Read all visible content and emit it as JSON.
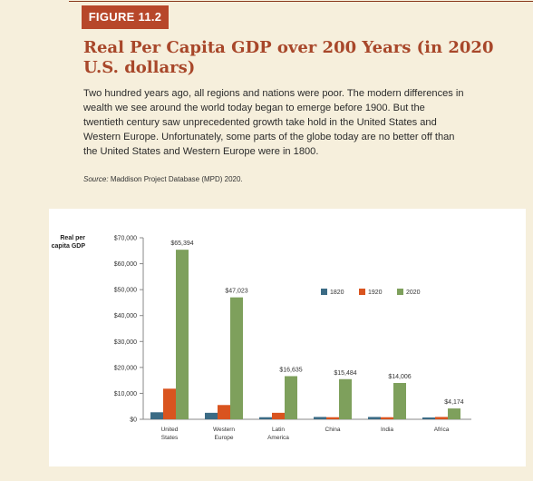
{
  "figure": {
    "label": "FIGURE 11.2",
    "title": "Real Per Capita GDP over 200 Years (in 2020 U.S. dollars)",
    "caption": "Two hundred years ago, all regions and nations were poor. The modern differences in wealth we see around the world today began to emerge before 1900. But the twentieth century saw unprecedented growth take hold in the United States and Western Europe. Unfortunately, some parts of the globe today are no better off than the United States and Western Europe were in 1800.",
    "source_label": "Source:",
    "source_text": "Maddison Project Database (MPD) 2020."
  },
  "colors": {
    "accent": "#b7472a",
    "title": "#a8472a",
    "background": "#f6efdc",
    "series_1820": "#3b6b85",
    "series_1920": "#d9541f",
    "series_2020": "#7ea05c"
  },
  "chart_data": {
    "type": "bar",
    "ylabel": "Real per capita GDP",
    "ylim": [
      0,
      70000
    ],
    "yticks": [
      "$0",
      "$10,000",
      "$20,000",
      "$30,000",
      "$40,000",
      "$50,000",
      "$60,000",
      "$70,000"
    ],
    "categories": [
      "United States",
      "Western Europe",
      "Latin America",
      "China",
      "India",
      "Africa"
    ],
    "series": [
      {
        "name": "1820",
        "values": [
          2700,
          2500,
          800,
          900,
          900,
          700
        ]
      },
      {
        "name": "1920",
        "values": [
          11800,
          5500,
          2500,
          800,
          800,
          900
        ]
      },
      {
        "name": "2020",
        "values": [
          65394,
          47023,
          16635,
          15484,
          14006,
          4174
        ]
      }
    ],
    "data_labels": [
      "$65,394",
      "$47,023",
      "$16,635",
      "$15,484",
      "$14,006",
      "$4,174"
    ],
    "legend_position": "top-right",
    "grid": false
  }
}
